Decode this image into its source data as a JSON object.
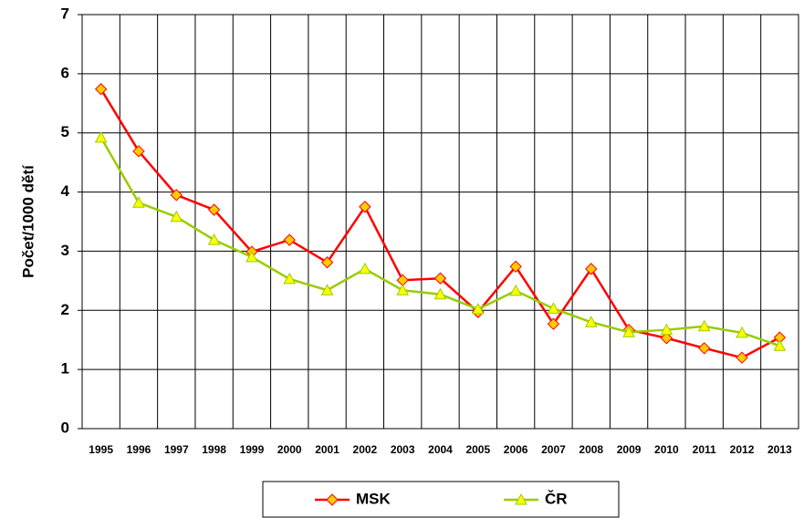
{
  "chart_data": {
    "type": "line",
    "y_label": "Počet/1000 dětí",
    "categories": [
      "1995",
      "1996",
      "1997",
      "1998",
      "1999",
      "2000",
      "2001",
      "2002",
      "2003",
      "2004",
      "2005",
      "2006",
      "2007",
      "2008",
      "2009",
      "2010",
      "2011",
      "2012",
      "2013"
    ],
    "series": [
      {
        "name": "MSK",
        "color": "#ff0000",
        "marker": "diamond",
        "marker_fill": "#ffcc00",
        "values": [
          5.74,
          4.69,
          3.95,
          3.7,
          2.99,
          3.19,
          2.81,
          3.75,
          2.51,
          2.54,
          1.97,
          2.74,
          1.77,
          2.7,
          1.67,
          1.53,
          1.36,
          1.2,
          1.54
        ]
      },
      {
        "name": "ČR",
        "color": "#99cc00",
        "marker": "triangle",
        "marker_fill": "#ffff00",
        "values": [
          4.92,
          3.82,
          3.58,
          3.19,
          2.9,
          2.53,
          2.34,
          2.7,
          2.34,
          2.27,
          2.02,
          2.33,
          2.03,
          1.8,
          1.63,
          1.67,
          1.73,
          1.62,
          1.4
        ]
      }
    ],
    "ylim": [
      0,
      7
    ],
    "yticks": [
      0,
      1,
      2,
      3,
      4,
      5,
      6,
      7
    ],
    "grid": true,
    "legend": "bottom"
  }
}
